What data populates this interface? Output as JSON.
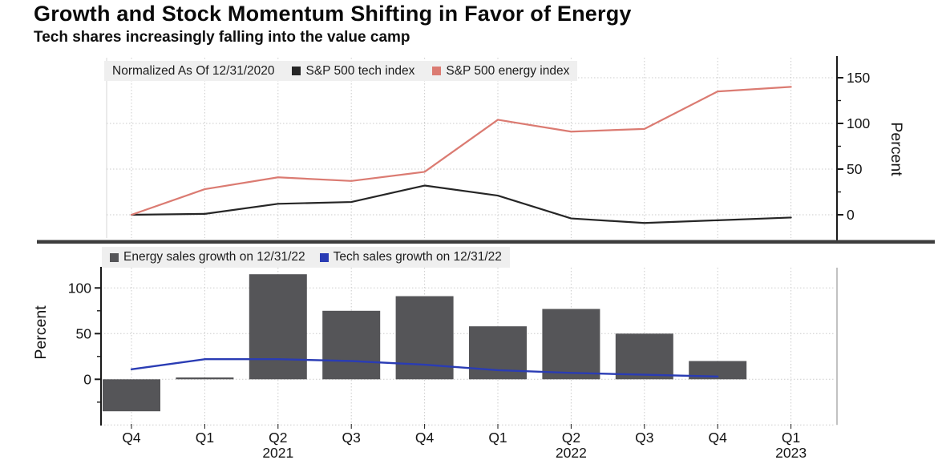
{
  "header": {
    "title": "Growth and Stock Momentum Shifting in Favor of Energy",
    "subtitle": "Tech shares increasingly falling into the value camp"
  },
  "top_panel": {
    "legend_note": "Normalized As Of 12/31/2020",
    "legend": [
      {
        "label": "S&P 500 tech index",
        "color": "#262626"
      },
      {
        "label": "S&P 500 energy index",
        "color": "#db7b72"
      }
    ],
    "axis_label": "Percent"
  },
  "bottom_panel": {
    "legend": [
      {
        "label": "Energy sales growth on 12/31/22",
        "color": "#555558"
      },
      {
        "label": "Tech sales growth on 12/31/22",
        "color": "#2a3cb4"
      }
    ],
    "axis_label": "Percent"
  },
  "x_axis": {
    "quarter_labels": [
      "Q4",
      "Q1",
      "Q2",
      "Q3",
      "Q4",
      "Q1",
      "Q2",
      "Q3",
      "Q4",
      "Q1"
    ],
    "year_labels": [
      {
        "text": "2021",
        "index": 2
      },
      {
        "text": "2022",
        "index": 6
      },
      {
        "text": "2023",
        "index": 9
      }
    ]
  },
  "colors": {
    "divider": "#3d3d3d",
    "grid": "#cbcbcb",
    "axis": "#1a1a1a",
    "legend_bg": "#efefef"
  },
  "chart_data": [
    {
      "type": "line",
      "title": "Normalized As Of 12/31/2020",
      "x": [
        "Q4 2020",
        "Q1 2021",
        "Q2 2021",
        "Q3 2021",
        "Q4 2021",
        "Q1 2022",
        "Q2 2022",
        "Q3 2022",
        "Q4 2022",
        "Q1 2023"
      ],
      "series": [
        {
          "name": "S&P 500 tech index",
          "color": "#262626",
          "values": [
            0,
            1,
            12,
            14,
            32,
            21,
            -4,
            -9,
            -6,
            -3
          ]
        },
        {
          "name": "S&P 500 energy index",
          "color": "#db7b72",
          "values": [
            0,
            28,
            41,
            37,
            47,
            104,
            91,
            94,
            135,
            140
          ]
        }
      ],
      "ylabel": "Percent",
      "ylim": [
        -25,
        165
      ],
      "yticks": [
        0,
        50,
        100,
        150
      ],
      "yticks_minor": [
        25,
        75,
        125
      ],
      "grid": true,
      "legend_position": "top-left",
      "y_axis_side": "right"
    },
    {
      "type": "bar",
      "x": [
        "Q4 2020",
        "Q1 2021",
        "Q2 2021",
        "Q3 2021",
        "Q4 2021",
        "Q1 2022",
        "Q2 2022",
        "Q3 2022",
        "Q4 2022",
        "Q1 2023"
      ],
      "series": [
        {
          "name": "Energy sales growth on 12/31/22",
          "type": "bar",
          "color": "#555558",
          "values": [
            -35,
            2,
            115,
            75,
            91,
            58,
            77,
            50,
            20,
            null
          ]
        },
        {
          "name": "Tech sales growth on 12/31/22",
          "type": "line",
          "color": "#2a3cb4",
          "values": [
            11,
            22,
            22,
            20,
            16,
            10,
            7,
            5,
            3,
            null
          ]
        }
      ],
      "ylabel": "Percent",
      "ylim": [
        -55,
        125
      ],
      "yticks": [
        0,
        50,
        100
      ],
      "yticks_minor": [
        -25,
        25,
        75
      ],
      "gridline_values": [
        -50,
        0,
        50,
        100
      ],
      "grid": true,
      "legend_position": "top-left",
      "y_axis_side": "left"
    }
  ]
}
